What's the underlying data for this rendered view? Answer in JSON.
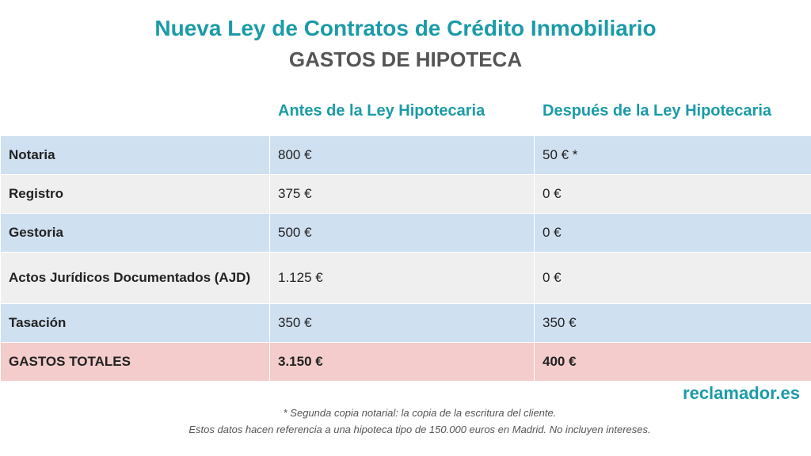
{
  "header": {
    "title": "Nueva Ley de Contratos de Crédito Inmobiliario",
    "subtitle": "GASTOS DE HIPOTECA"
  },
  "table": {
    "columns": [
      "Antes de la Ley Hipotecaria",
      "Después de la Ley Hipotecaria"
    ],
    "rows": [
      [
        "Notaria",
        "800 €",
        "50 € *"
      ],
      [
        "Registro",
        "375 €",
        "0 €"
      ],
      [
        "Gestoria",
        "500 €",
        "0 €"
      ],
      [
        "Actos Jurídicos Documentados (AJD)",
        "1.125 €",
        "0 €"
      ],
      [
        "Tasación",
        "350 €",
        "350 €"
      ],
      [
        "GASTOS TOTALES",
        "3.150 €",
        "400 €"
      ]
    ]
  },
  "brand": "reclamador.es",
  "notes": [
    "* Segunda copia notarial: la copia de la escritura del cliente.",
    "Estos datos hacen referencia a una hipoteca tipo de 150.000 euros en Madrid. No incluyen intereses."
  ]
}
